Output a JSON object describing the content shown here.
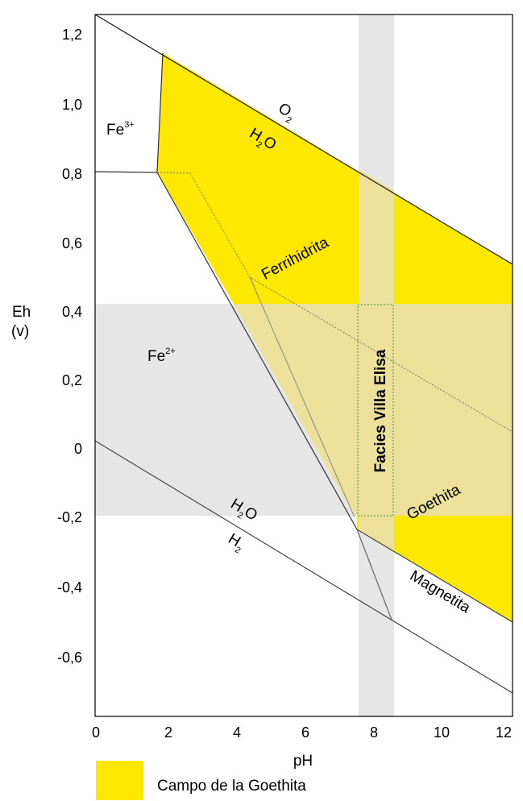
{
  "chart_data": {
    "type": "diagram",
    "xlabel": "pH",
    "ylabel": "Eh",
    "ylabel_unit": "(v)",
    "xlim": [
      0,
      12.2
    ],
    "ylim": [
      -0.78,
      1.27
    ],
    "x_ticks": [
      "0",
      "2",
      "4",
      "6",
      "8",
      "10",
      "12"
    ],
    "y_ticks": [
      "1,2",
      "1,0",
      "0,8",
      "0,6",
      "0,4",
      "0,2",
      "0",
      "-0,2",
      "-0,4",
      "-0,6"
    ],
    "labels": {
      "fe3": "Fe",
      "fe3_sup": "3+",
      "fe2": "Fe",
      "fe2_sup": "2+",
      "o2": "O",
      "o2_sub": "2",
      "h2o_top": "H",
      "h2o_top_sub": "2",
      "h2o_top_o": "O",
      "h2o_bottom": "H",
      "h2o_bottom_sub": "2",
      "h2o_bottom_o": "O",
      "h2": "H",
      "h2_sub": "2",
      "ferrihidrita": "Ferrihidrita",
      "goethita": "Goethita",
      "magnetita": "Magnetita",
      "facies": "Facies Villa Elisa"
    },
    "legend": [
      {
        "label": "Campo de la Goethita",
        "color": "#ffe800"
      }
    ],
    "colors": {
      "goethite_field": "#ffe800",
      "band": "#e6e6e6",
      "overlap": "#ece09a",
      "facies_border": "#3a9a3a"
    },
    "bands": {
      "ph_band": [
        7.5,
        8.5
      ],
      "eh_band": [
        -0.2,
        0.4
      ]
    }
  }
}
